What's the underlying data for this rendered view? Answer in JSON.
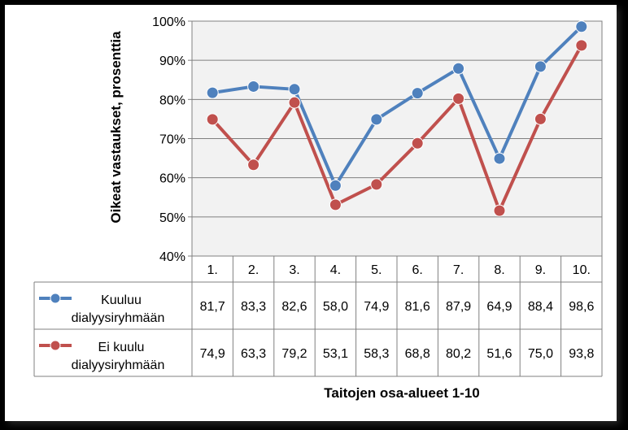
{
  "chart_data": {
    "type": "line",
    "title": "",
    "ylabel": "Oikeat vastaukset, prosenttia",
    "xlabel": "Taitojen osa-alueet 1-10",
    "ylim": [
      40,
      100
    ],
    "yticks": [
      "40%",
      "50%",
      "60%",
      "70%",
      "80%",
      "90%",
      "100%"
    ],
    "categories": [
      "1.",
      "2.",
      "3.",
      "4.",
      "5.",
      "6.",
      "7.",
      "8.",
      "9.",
      "10."
    ],
    "grid": true,
    "legend": "data-table",
    "series": [
      {
        "name": "Kuuluu dialyysiryhmään",
        "name_lines": [
          "Kuuluu",
          "dialyysiryhmään"
        ],
        "color": "#4F81BD",
        "values": [
          81.7,
          83.3,
          82.6,
          58.0,
          74.9,
          81.6,
          87.9,
          64.9,
          88.4,
          98.6
        ],
        "labels": [
          "81,7",
          "83,3",
          "82,6",
          "58,0",
          "74,9",
          "81,6",
          "87,9",
          "64,9",
          "88,4",
          "98,6"
        ]
      },
      {
        "name": "Ei kuulu dialyysiryhmään",
        "name_lines": [
          "Ei kuulu",
          "dialyysiryhmään"
        ],
        "color": "#C0504D",
        "values": [
          74.9,
          63.3,
          79.2,
          53.1,
          58.3,
          68.8,
          80.2,
          51.6,
          75.0,
          93.8
        ],
        "labels": [
          "74,9",
          "63,3",
          "79,2",
          "53,1",
          "58,3",
          "68,8",
          "80,2",
          "51,6",
          "75,0",
          "93,8"
        ]
      }
    ]
  }
}
